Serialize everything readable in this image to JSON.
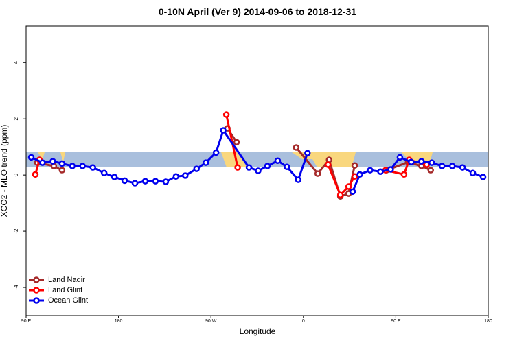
{
  "chart_data": {
    "type": "line",
    "title": "0-10N April (Ver 9)   2014-09-06 to 2018-12-31",
    "x_label": "Longitude",
    "y_label": "XCO2 - MLO trend (ppm)",
    "xlim": [
      90,
      540
    ],
    "ylim": [
      -5,
      5.3
    ],
    "xticks": [
      {
        "value": 90,
        "label": "90 E"
      },
      {
        "value": 180,
        "label": "180"
      },
      {
        "value": 270,
        "label": "90 W"
      },
      {
        "value": 360,
        "label": "0"
      },
      {
        "value": 450,
        "label": "90 E"
      },
      {
        "value": 540,
        "label": "180"
      }
    ],
    "yticks": [
      -4,
      -2,
      0,
      2,
      4
    ],
    "legend": "bottom-left",
    "series": [
      {
        "name": "Land Nadir",
        "color": "#a52a2a",
        "x": [
          101,
          117,
          125,
          286,
          295,
          353,
          374,
          385,
          396,
          404,
          410,
          441,
          462,
          475,
          484
        ],
        "values": [
          0.44,
          0.32,
          0.17,
          1.66,
          1.17,
          0.98,
          0.05,
          0.54,
          -0.76,
          -0.66,
          0.34,
          0.17,
          0.46,
          0.32,
          0.17
        ]
      },
      {
        "name": "Land Glint",
        "color": "#ff0000",
        "x": [
          99,
          103,
          285,
          296,
          384,
          396,
          404,
          410,
          440,
          458,
          463,
          480
        ],
        "values": [
          0.02,
          0.54,
          2.15,
          0.27,
          0.37,
          -0.71,
          -0.41,
          -0.05,
          0.17,
          0.02,
          0.54,
          0.37
        ]
      },
      {
        "name": "Ocean Glint",
        "color": "#0000ee",
        "x": [
          95,
          106,
          116,
          125,
          135,
          145,
          155,
          166,
          176,
          186,
          196,
          206,
          216,
          226,
          236,
          245,
          256,
          265,
          275,
          282,
          307,
          316,
          325,
          335,
          344,
          355,
          364,
          408,
          415,
          425,
          435,
          445,
          454,
          465,
          475,
          485,
          495,
          505,
          515,
          525,
          535
        ],
        "values": [
          0.63,
          0.44,
          0.49,
          0.41,
          0.32,
          0.32,
          0.27,
          0.07,
          -0.07,
          -0.2,
          -0.29,
          -0.22,
          -0.22,
          -0.24,
          -0.05,
          -0.02,
          0.22,
          0.44,
          0.8,
          1.59,
          0.27,
          0.15,
          0.32,
          0.51,
          0.29,
          -0.17,
          0.78,
          -0.59,
          0.02,
          0.17,
          0.12,
          0.2,
          0.63,
          0.46,
          0.49,
          0.44,
          0.32,
          0.32,
          0.27,
          0.07,
          -0.07
        ]
      }
    ]
  }
}
